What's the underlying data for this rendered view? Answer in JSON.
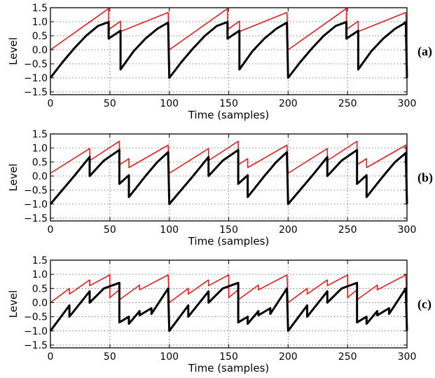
{
  "chart_data": [
    {
      "type": "line",
      "panel_label": "(a)",
      "xlabel": "Time (samples)",
      "ylabel": "Level",
      "xlim": [
        0,
        300
      ],
      "ylim": [
        -1.6,
        1.5
      ],
      "xticks": [
        "0",
        "50",
        "100",
        "150",
        "200",
        "250",
        "300"
      ],
      "yticks": [
        "1.5",
        "1.0",
        "0.5",
        "0.0",
        "−0.5",
        "−1.0",
        "−1.5"
      ],
      "grid": true,
      "series": [
        {
          "color": "#e02020",
          "x": [
            0,
            49,
            49,
            59,
            59,
            99,
            100,
            149,
            149,
            159,
            159,
            199,
            200,
            249,
            249,
            259,
            259,
            299,
            300
          ],
          "y": [
            0.0,
            1.47,
            0.72,
            1.02,
            0.65,
            1.33,
            0.0,
            1.47,
            0.72,
            1.02,
            0.65,
            1.33,
            0.0,
            1.47,
            0.72,
            1.02,
            0.65,
            1.33,
            0.0
          ]
        },
        {
          "color": "#000000",
          "x": [
            0,
            10,
            20,
            30,
            40,
            49,
            49,
            59,
            59,
            70,
            80,
            90,
            99,
            100,
            110,
            120,
            130,
            140,
            149,
            149,
            159,
            159,
            170,
            180,
            190,
            199,
            200,
            210,
            220,
            230,
            240,
            249,
            249,
            259,
            259,
            270,
            280,
            290,
            299,
            300
          ],
          "y": [
            -1.0,
            -0.45,
            0.05,
            0.5,
            0.85,
            0.99,
            0.4,
            0.68,
            -0.7,
            -0.05,
            0.4,
            0.75,
            0.97,
            -1.0,
            -0.45,
            0.05,
            0.5,
            0.85,
            0.99,
            0.4,
            0.68,
            -0.7,
            -0.05,
            0.4,
            0.75,
            0.97,
            -1.0,
            -0.45,
            0.05,
            0.5,
            0.85,
            0.99,
            0.4,
            0.68,
            -0.7,
            -0.05,
            0.4,
            0.75,
            0.97,
            -1.0
          ]
        }
      ]
    },
    {
      "type": "line",
      "panel_label": "(b)",
      "xlabel": "Time (samples)",
      "ylabel": "Level",
      "xlim": [
        0,
        300
      ],
      "ylim": [
        -1.6,
        1.5
      ],
      "xticks": [
        "0",
        "50",
        "100",
        "150",
        "200",
        "250",
        "300"
      ],
      "yticks": [
        "1.5",
        "1.0",
        "0.5",
        "0.0",
        "−0.5",
        "−1.0",
        "−1.5"
      ],
      "grid": true,
      "series": [
        {
          "color": "#e02020",
          "x": [
            0,
            33,
            33,
            58,
            58,
            66,
            66,
            99,
            100,
            133,
            133,
            158,
            158,
            166,
            166,
            199,
            200,
            233,
            233,
            258,
            258,
            266,
            266,
            299,
            300
          ],
          "y": [
            0.1,
            0.98,
            0.55,
            1.24,
            0.4,
            0.62,
            0.3,
            1.1,
            0.1,
            0.98,
            0.55,
            1.24,
            0.4,
            0.62,
            0.3,
            1.1,
            0.1,
            0.98,
            0.55,
            1.24,
            0.4,
            0.62,
            0.3,
            1.1,
            0.1
          ]
        },
        {
          "color": "#000000",
          "x": [
            0,
            10,
            20,
            33,
            33,
            45,
            58,
            58,
            66,
            66,
            80,
            90,
            99,
            100,
            110,
            120,
            133,
            133,
            145,
            158,
            158,
            166,
            166,
            180,
            190,
            199,
            200,
            210,
            220,
            233,
            233,
            245,
            258,
            258,
            266,
            266,
            280,
            290,
            299,
            300
          ],
          "y": [
            -1.0,
            -0.5,
            0.0,
            0.68,
            0.0,
            0.55,
            0.93,
            -0.28,
            0.03,
            -0.75,
            0.0,
            0.5,
            0.85,
            -1.0,
            -0.5,
            0.0,
            0.68,
            0.0,
            0.55,
            0.93,
            -0.28,
            0.03,
            -0.75,
            0.0,
            0.5,
            0.85,
            -1.0,
            -0.5,
            0.0,
            0.68,
            0.0,
            0.55,
            0.93,
            -0.28,
            0.03,
            -0.75,
            0.0,
            0.5,
            0.82,
            -1.0
          ]
        }
      ]
    },
    {
      "type": "line",
      "panel_label": "(c)",
      "xlabel": "Time (samples)",
      "ylabel": "Level",
      "xlim": [
        0,
        300
      ],
      "ylim": [
        -1.6,
        1.5
      ],
      "xticks": [
        "0",
        "50",
        "100",
        "150",
        "200",
        "250",
        "300"
      ],
      "yticks": [
        "1.5",
        "1.0",
        "0.5",
        "0.0",
        "−0.5",
        "−1.0",
        "−1.5"
      ],
      "grid": true,
      "series": [
        {
          "color": "#e02020",
          "x": [
            0,
            16,
            16,
            33,
            33,
            50,
            50,
            58,
            58,
            75,
            75,
            99,
            100,
            116,
            116,
            133,
            133,
            150,
            150,
            158,
            158,
            175,
            175,
            199,
            200,
            216,
            216,
            233,
            233,
            250,
            250,
            258,
            258,
            275,
            275,
            299,
            300
          ],
          "y": [
            0.0,
            0.5,
            0.3,
            0.8,
            0.6,
            0.98,
            0.18,
            0.45,
            0.1,
            0.62,
            0.45,
            0.98,
            0.0,
            0.5,
            0.3,
            0.8,
            0.6,
            0.98,
            0.18,
            0.45,
            0.1,
            0.62,
            0.45,
            0.98,
            0.0,
            0.5,
            0.3,
            0.8,
            0.6,
            0.98,
            0.18,
            0.45,
            0.1,
            0.62,
            0.45,
            0.98,
            0.0
          ]
        },
        {
          "color": "#000000",
          "x": [
            0,
            16,
            16,
            33,
            33,
            45,
            58,
            58,
            66,
            66,
            75,
            75,
            85,
            85,
            99,
            100,
            116,
            116,
            133,
            133,
            145,
            158,
            158,
            166,
            166,
            175,
            175,
            185,
            185,
            199,
            200,
            216,
            216,
            233,
            233,
            245,
            258,
            258,
            266,
            266,
            275,
            275,
            285,
            285,
            299,
            300
          ],
          "y": [
            -1.0,
            -0.1,
            -0.5,
            0.4,
            0.0,
            0.5,
            0.7,
            -0.7,
            -0.5,
            -0.75,
            -0.3,
            -0.45,
            -0.2,
            -0.4,
            0.5,
            -1.0,
            -0.1,
            -0.5,
            0.4,
            0.0,
            0.5,
            0.7,
            -0.7,
            -0.5,
            -0.75,
            -0.3,
            -0.45,
            -0.2,
            -0.4,
            0.5,
            -1.0,
            -0.1,
            -0.5,
            0.4,
            0.0,
            0.5,
            0.7,
            -0.7,
            -0.5,
            -0.75,
            -0.3,
            -0.45,
            -0.2,
            -0.4,
            0.5,
            -1.0
          ]
        }
      ]
    }
  ]
}
